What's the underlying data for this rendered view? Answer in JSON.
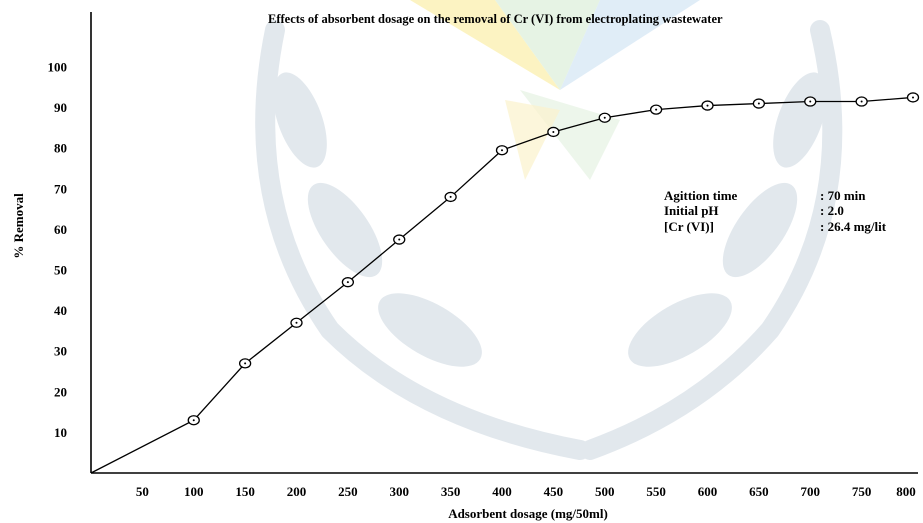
{
  "chart_data": {
    "type": "line",
    "title": "Effects of absorbent dosage on the removal of Cr (VI) from electroplating wastewater",
    "xlabel": "Adsorbent dosage (mg/50ml)",
    "ylabel": "% Removal",
    "xlim": [
      0,
      800
    ],
    "ylim": [
      0,
      100
    ],
    "x_ticks": [
      50,
      100,
      150,
      200,
      250,
      300,
      350,
      400,
      450,
      500,
      550,
      600,
      650,
      700,
      750,
      800
    ],
    "y_ticks": [
      10,
      20,
      30,
      40,
      50,
      60,
      70,
      80,
      90,
      100
    ],
    "grid": false,
    "series": [
      {
        "x": [
          0,
          100,
          150,
          200,
          250,
          300,
          350,
          400,
          450,
          500,
          550,
          600,
          650,
          700,
          750,
          800
        ],
        "y": [
          0,
          13,
          27,
          37,
          47,
          57.5,
          68,
          79.5,
          84,
          87.5,
          89.5,
          90.5,
          91,
          91.5,
          91.5,
          92.5
        ]
      }
    ],
    "annotation": [
      {
        "label": "Agittion time",
        "value": ": 70 min"
      },
      {
        "label": "Initial pH",
        "value": ": 2.0"
      },
      {
        "label": "[Cr (VI)]",
        "value": ": 26.4 mg/lit"
      }
    ],
    "colors": {
      "line": "#000000",
      "watermark": "#dfe6ec"
    }
  }
}
